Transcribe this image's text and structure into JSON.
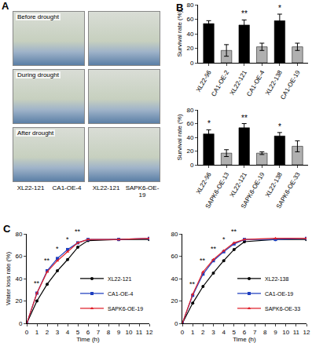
{
  "photo_panel": {
    "panel_label": "A",
    "rows": [
      "Before drought",
      "During drought",
      "After drought"
    ],
    "columns": [
      [
        "XL22-121",
        "CA1-OE-4"
      ],
      [
        "XL22-121",
        "SAPK6-OE-19"
      ]
    ]
  },
  "chart_data": [
    {
      "type": "bar",
      "panel_label": "B",
      "y_label": "Survival rate (%)",
      "categories": [
        "XL22-96",
        "CA1-OE-2",
        "XL22-121",
        "CA1-OE-4",
        "XL22-138",
        "CA1-OE-19"
      ],
      "values": [
        54,
        17,
        52,
        22,
        58,
        22
      ],
      "errors": [
        4,
        8,
        7,
        5,
        9,
        5
      ],
      "colors": [
        "#000000",
        "#b0b0b0",
        "#000000",
        "#b0b0b0",
        "#000000",
        "#b0b0b0"
      ],
      "ylim": [
        0,
        80
      ],
      "yticks": [
        0,
        20,
        40,
        60,
        80
      ],
      "grid": false,
      "annotations": [
        {
          "category": "XL22-121",
          "text": "**"
        },
        {
          "category": "XL22-138",
          "text": "*"
        }
      ]
    },
    {
      "type": "bar",
      "y_label": "Survival rate (%)",
      "categories": [
        "XL22-96",
        "SAPK6-OE-13",
        "XL22-121",
        "SAPK6-OE-19",
        "XL22-138",
        "SAPK6-OE-33"
      ],
      "values": [
        45,
        17,
        54,
        17,
        42,
        27
      ],
      "errors": [
        6,
        5,
        6,
        2,
        5,
        8
      ],
      "colors": [
        "#000000",
        "#b0b0b0",
        "#000000",
        "#b0b0b0",
        "#000000",
        "#b0b0b0"
      ],
      "ylim": [
        0,
        80
      ],
      "yticks": [
        0,
        20,
        40,
        60,
        80
      ],
      "grid": false,
      "annotations": [
        {
          "category": "XL22-96",
          "text": "*"
        },
        {
          "category": "XL22-121",
          "text": "**"
        },
        {
          "category": "XL22-138",
          "text": "*"
        }
      ]
    },
    {
      "type": "line",
      "panel_label": "C",
      "x_label": "Time (h)",
      "y_label": "Water loss rate (%)",
      "x": [
        0,
        1,
        2,
        3,
        4,
        5,
        6,
        9,
        12
      ],
      "series": [
        {
          "name": "XL22-121",
          "color": "#000000",
          "marker": "circle",
          "values": [
            0,
            20,
            35,
            47,
            57,
            68,
            74,
            75,
            75
          ]
        },
        {
          "name": "CA1-OE-4",
          "color": "#1f3fbf",
          "marker": "square",
          "values": [
            0,
            27,
            47,
            58,
            66,
            72,
            75,
            75,
            76
          ]
        },
        {
          "name": "SAPK6-OE-19",
          "color": "#e0202a",
          "marker": "triangle-up",
          "values": [
            0,
            27,
            46,
            56,
            64,
            72,
            75,
            75,
            76
          ]
        }
      ],
      "xlim": [
        0,
        12
      ],
      "xticks": [
        0,
        1,
        2,
        3,
        4,
        5,
        6,
        7,
        8,
        9,
        10,
        11,
        12
      ],
      "ylim": [
        0,
        80
      ],
      "yticks": [
        0,
        20,
        40,
        60,
        80
      ],
      "grid": false,
      "legend": "lower right",
      "annotations": [
        {
          "x": 1,
          "y": 31,
          "text": "**"
        },
        {
          "x": 2,
          "y": 51,
          "text": "**"
        },
        {
          "x": 3,
          "y": 62,
          "text": "*"
        },
        {
          "x": 4,
          "y": 70,
          "text": "*"
        },
        {
          "x": 5,
          "y": 77,
          "text": "**"
        }
      ]
    },
    {
      "type": "line",
      "x_label": "Time (h)",
      "x": [
        0,
        1,
        2,
        3,
        4,
        5,
        6,
        9,
        12
      ],
      "series": [
        {
          "name": "XL22-138",
          "color": "#000000",
          "marker": "circle",
          "values": [
            0,
            18,
            33,
            45,
            56,
            66,
            73,
            75,
            75
          ]
        },
        {
          "name": "CA1-OE-19",
          "color": "#1f3fbf",
          "marker": "square",
          "values": [
            0,
            25,
            44,
            56,
            64,
            71,
            75,
            75,
            76
          ]
        },
        {
          "name": "SAPK6-OE-33",
          "color": "#e0202a",
          "marker": "triangle-up",
          "values": [
            0,
            26,
            46,
            57,
            65,
            72,
            75,
            76,
            76
          ]
        }
      ],
      "xlim": [
        0,
        12
      ],
      "xticks": [
        0,
        1,
        2,
        3,
        4,
        5,
        6,
        7,
        8,
        9,
        10,
        11,
        12
      ],
      "ylim": [
        0,
        80
      ],
      "yticks": [
        0,
        20,
        40,
        60,
        80
      ],
      "grid": false,
      "legend": "lower right",
      "annotations": [
        {
          "x": 1,
          "y": 30,
          "text": "**"
        },
        {
          "x": 2,
          "y": 51,
          "text": "**"
        },
        {
          "x": 3,
          "y": 62,
          "text": "**"
        },
        {
          "x": 4,
          "y": 70,
          "text": "*"
        },
        {
          "x": 5,
          "y": 77,
          "text": "**"
        }
      ]
    }
  ]
}
